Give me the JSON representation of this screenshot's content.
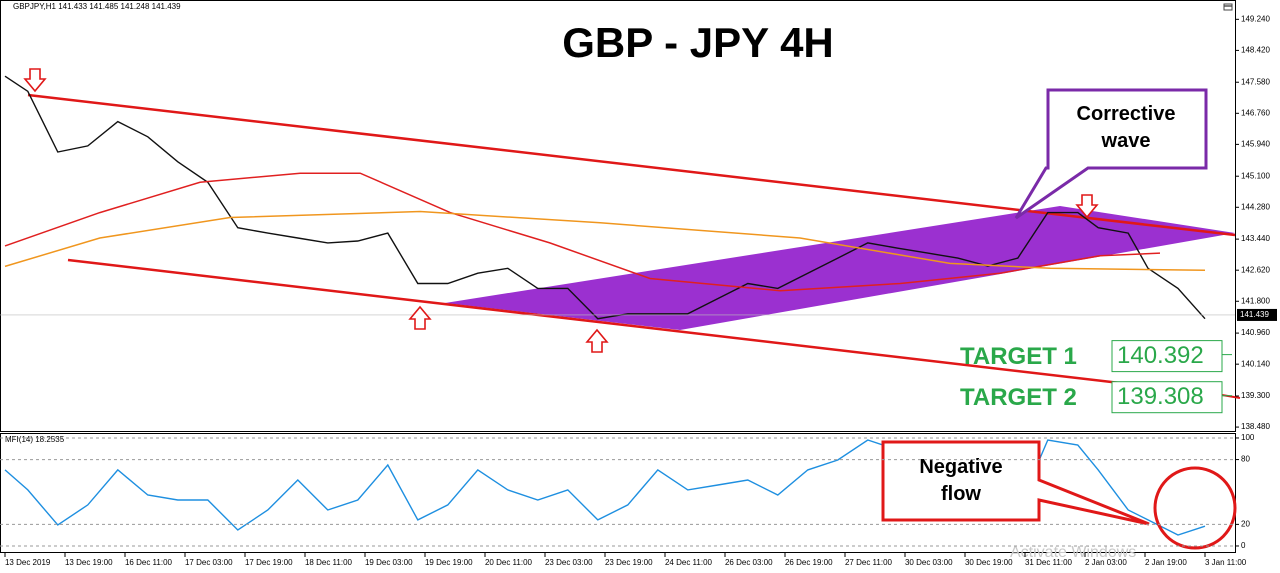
{
  "chart_data": [
    {
      "type": "line",
      "title": "GBP - JPY 4H",
      "header": "GBPJPY,H1  141.433 141.485 141.248 141.439",
      "xlim": [
        -0.0833,
        20.5
      ],
      "xticks": [
        {
          "value": 0,
          "label": "13 Dec 2019"
        },
        {
          "value": 1,
          "label": "13 Dec 19:00"
        },
        {
          "value": 2,
          "label": "16 Dec 11:00"
        },
        {
          "value": 3,
          "label": "17 Dec 03:00"
        },
        {
          "value": 4,
          "label": "17 Dec 19:00"
        },
        {
          "value": 5,
          "label": "18 Dec 11:00"
        },
        {
          "value": 6,
          "label": "19 Dec 03:00"
        },
        {
          "value": 7,
          "label": "19 Dec 19:00"
        },
        {
          "value": 8,
          "label": "20 Dec 11:00"
        },
        {
          "value": 9,
          "label": "23 Dec 03:00"
        },
        {
          "value": 10,
          "label": "23 Dec 19:00"
        },
        {
          "value": 11,
          "label": "24 Dec 11:00"
        },
        {
          "value": 12,
          "label": "26 Dec 03:00"
        },
        {
          "value": 13,
          "label": "26 Dec 19:00"
        },
        {
          "value": 14,
          "label": "27 Dec 11:00"
        },
        {
          "value": 15,
          "label": "30 Dec 03:00"
        },
        {
          "value": 16,
          "label": "30 Dec 19:00"
        },
        {
          "value": 17,
          "label": "31 Dec 11:00"
        },
        {
          "value": 18,
          "label": "2 Jan 03:00"
        },
        {
          "value": 19,
          "label": "2 Jan 19:00"
        },
        {
          "value": 20,
          "label": "3 Jan 11:00"
        }
      ],
      "ylim": [
        138.35,
        149.75
      ],
      "yticks": [
        {
          "value": 149.24,
          "label": "149.240"
        },
        {
          "value": 148.42,
          "label": "148.420"
        },
        {
          "value": 147.58,
          "label": "147.580"
        },
        {
          "value": 146.76,
          "label": "146.760"
        },
        {
          "value": 145.94,
          "label": "145.940"
        },
        {
          "value": 145.1,
          "label": "145.100"
        },
        {
          "value": 144.28,
          "label": "144.280"
        },
        {
          "value": 143.44,
          "label": "143.440"
        },
        {
          "value": 142.62,
          "label": "142.620"
        },
        {
          "value": 141.8,
          "label": "141.800"
        },
        {
          "value": 140.96,
          "label": "140.960"
        },
        {
          "value": 140.14,
          "label": "140.140"
        },
        {
          "value": 139.3,
          "label": "139.300"
        },
        {
          "value": 138.48,
          "label": "138.480"
        }
      ],
      "grid": false,
      "series": [
        {
          "color": "#111111",
          "x": [
            0,
            0.38,
            0.88,
            1.38,
            1.88,
            2.38,
            2.88,
            3.38,
            3.88,
            4.38,
            4.88,
            5.38,
            5.88,
            6.38,
            6.88,
            7.38,
            7.88,
            8.38,
            8.88,
            9.38,
            9.88,
            10.38,
            10.88,
            11.38,
            11.88,
            12.38,
            12.88,
            13.38,
            13.88,
            14.38,
            14.88,
            15.38,
            15.88,
            16.38,
            16.88,
            17.38,
            17.88,
            18.22,
            18.72,
            19.05,
            19.55,
            20.0
          ],
          "values": [
            147.74,
            147.34,
            145.74,
            145.9,
            146.54,
            146.14,
            145.48,
            144.94,
            143.74,
            143.6,
            143.47,
            143.34,
            143.39,
            143.6,
            142.27,
            142.27,
            142.54,
            142.67,
            142.14,
            142.14,
            141.34,
            141.47,
            141.47,
            141.47,
            141.87,
            142.27,
            142.14,
            142.54,
            142.94,
            143.34,
            143.2,
            143.07,
            142.94,
            142.73,
            142.94,
            144.14,
            144.14,
            143.74,
            143.6,
            142.67,
            142.14,
            141.34
          ]
        },
        {
          "color": "#e02020",
          "x": [
            0,
            1.58,
            3.25,
            4.92,
            5.92,
            7.42,
            9.08,
            10.75,
            12.92,
            14.92,
            16.58,
            18.25,
            19.25
          ],
          "values": [
            143.26,
            144.14,
            144.94,
            145.18,
            145.18,
            144.14,
            143.34,
            142.4,
            142.08,
            142.27,
            142.54,
            143.0,
            143.07
          ]
        },
        {
          "color": "#f0961e",
          "x": [
            0,
            1.58,
            3.75,
            6.92,
            9.92,
            13.25,
            15.75,
            17.42,
            20.0
          ],
          "values": [
            142.72,
            143.47,
            144.01,
            144.17,
            143.87,
            143.47,
            142.8,
            142.67,
            142.62
          ]
        }
      ],
      "last_price": 141.439,
      "targets": [
        {
          "label": "TARGET 1",
          "value": 140.392
        },
        {
          "label": "TARGET 2",
          "value": 139.308
        }
      ],
      "annotations": [
        "Corrective wave",
        "Negative flow"
      ],
      "watermark": "Activate Windows"
    },
    {
      "type": "line",
      "title": "MFI(14) 18.2535",
      "xlim": [
        -0.0833,
        20.5
      ],
      "ylim": [
        -6.5,
        104.6
      ],
      "yticks": [
        100,
        80,
        20,
        0
      ],
      "grid": true,
      "series": [
        {
          "color": "#1e8fe0",
          "x": [
            0,
            0.38,
            0.88,
            1.38,
            1.88,
            2.38,
            2.88,
            3.38,
            3.88,
            4.38,
            4.88,
            5.38,
            5.88,
            6.38,
            6.88,
            7.38,
            7.88,
            8.38,
            8.88,
            9.38,
            9.88,
            10.38,
            10.88,
            11.38,
            11.88,
            12.38,
            12.88,
            13.38,
            13.88,
            14.38,
            14.88,
            15.38,
            15.88,
            16.38,
            16.88,
            17.38,
            17.88,
            18.22,
            18.72,
            19.05,
            19.55,
            20.0
          ],
          "values": [
            70.4,
            51.9,
            19.4,
            38,
            70.4,
            47.2,
            42.6,
            42.6,
            14.8,
            33.3,
            61.1,
            33.3,
            42.6,
            75,
            24.1,
            38,
            70.4,
            51.9,
            42.6,
            51.9,
            24.1,
            38,
            70.4,
            51.9,
            56.5,
            61.1,
            47.2,
            70.4,
            79.6,
            98.1,
            88.9,
            61.1,
            38,
            47.2,
            33.3,
            98.1,
            93.5,
            70.4,
            33.3,
            24.1,
            10.2,
            18.3
          ]
        }
      ]
    }
  ]
}
